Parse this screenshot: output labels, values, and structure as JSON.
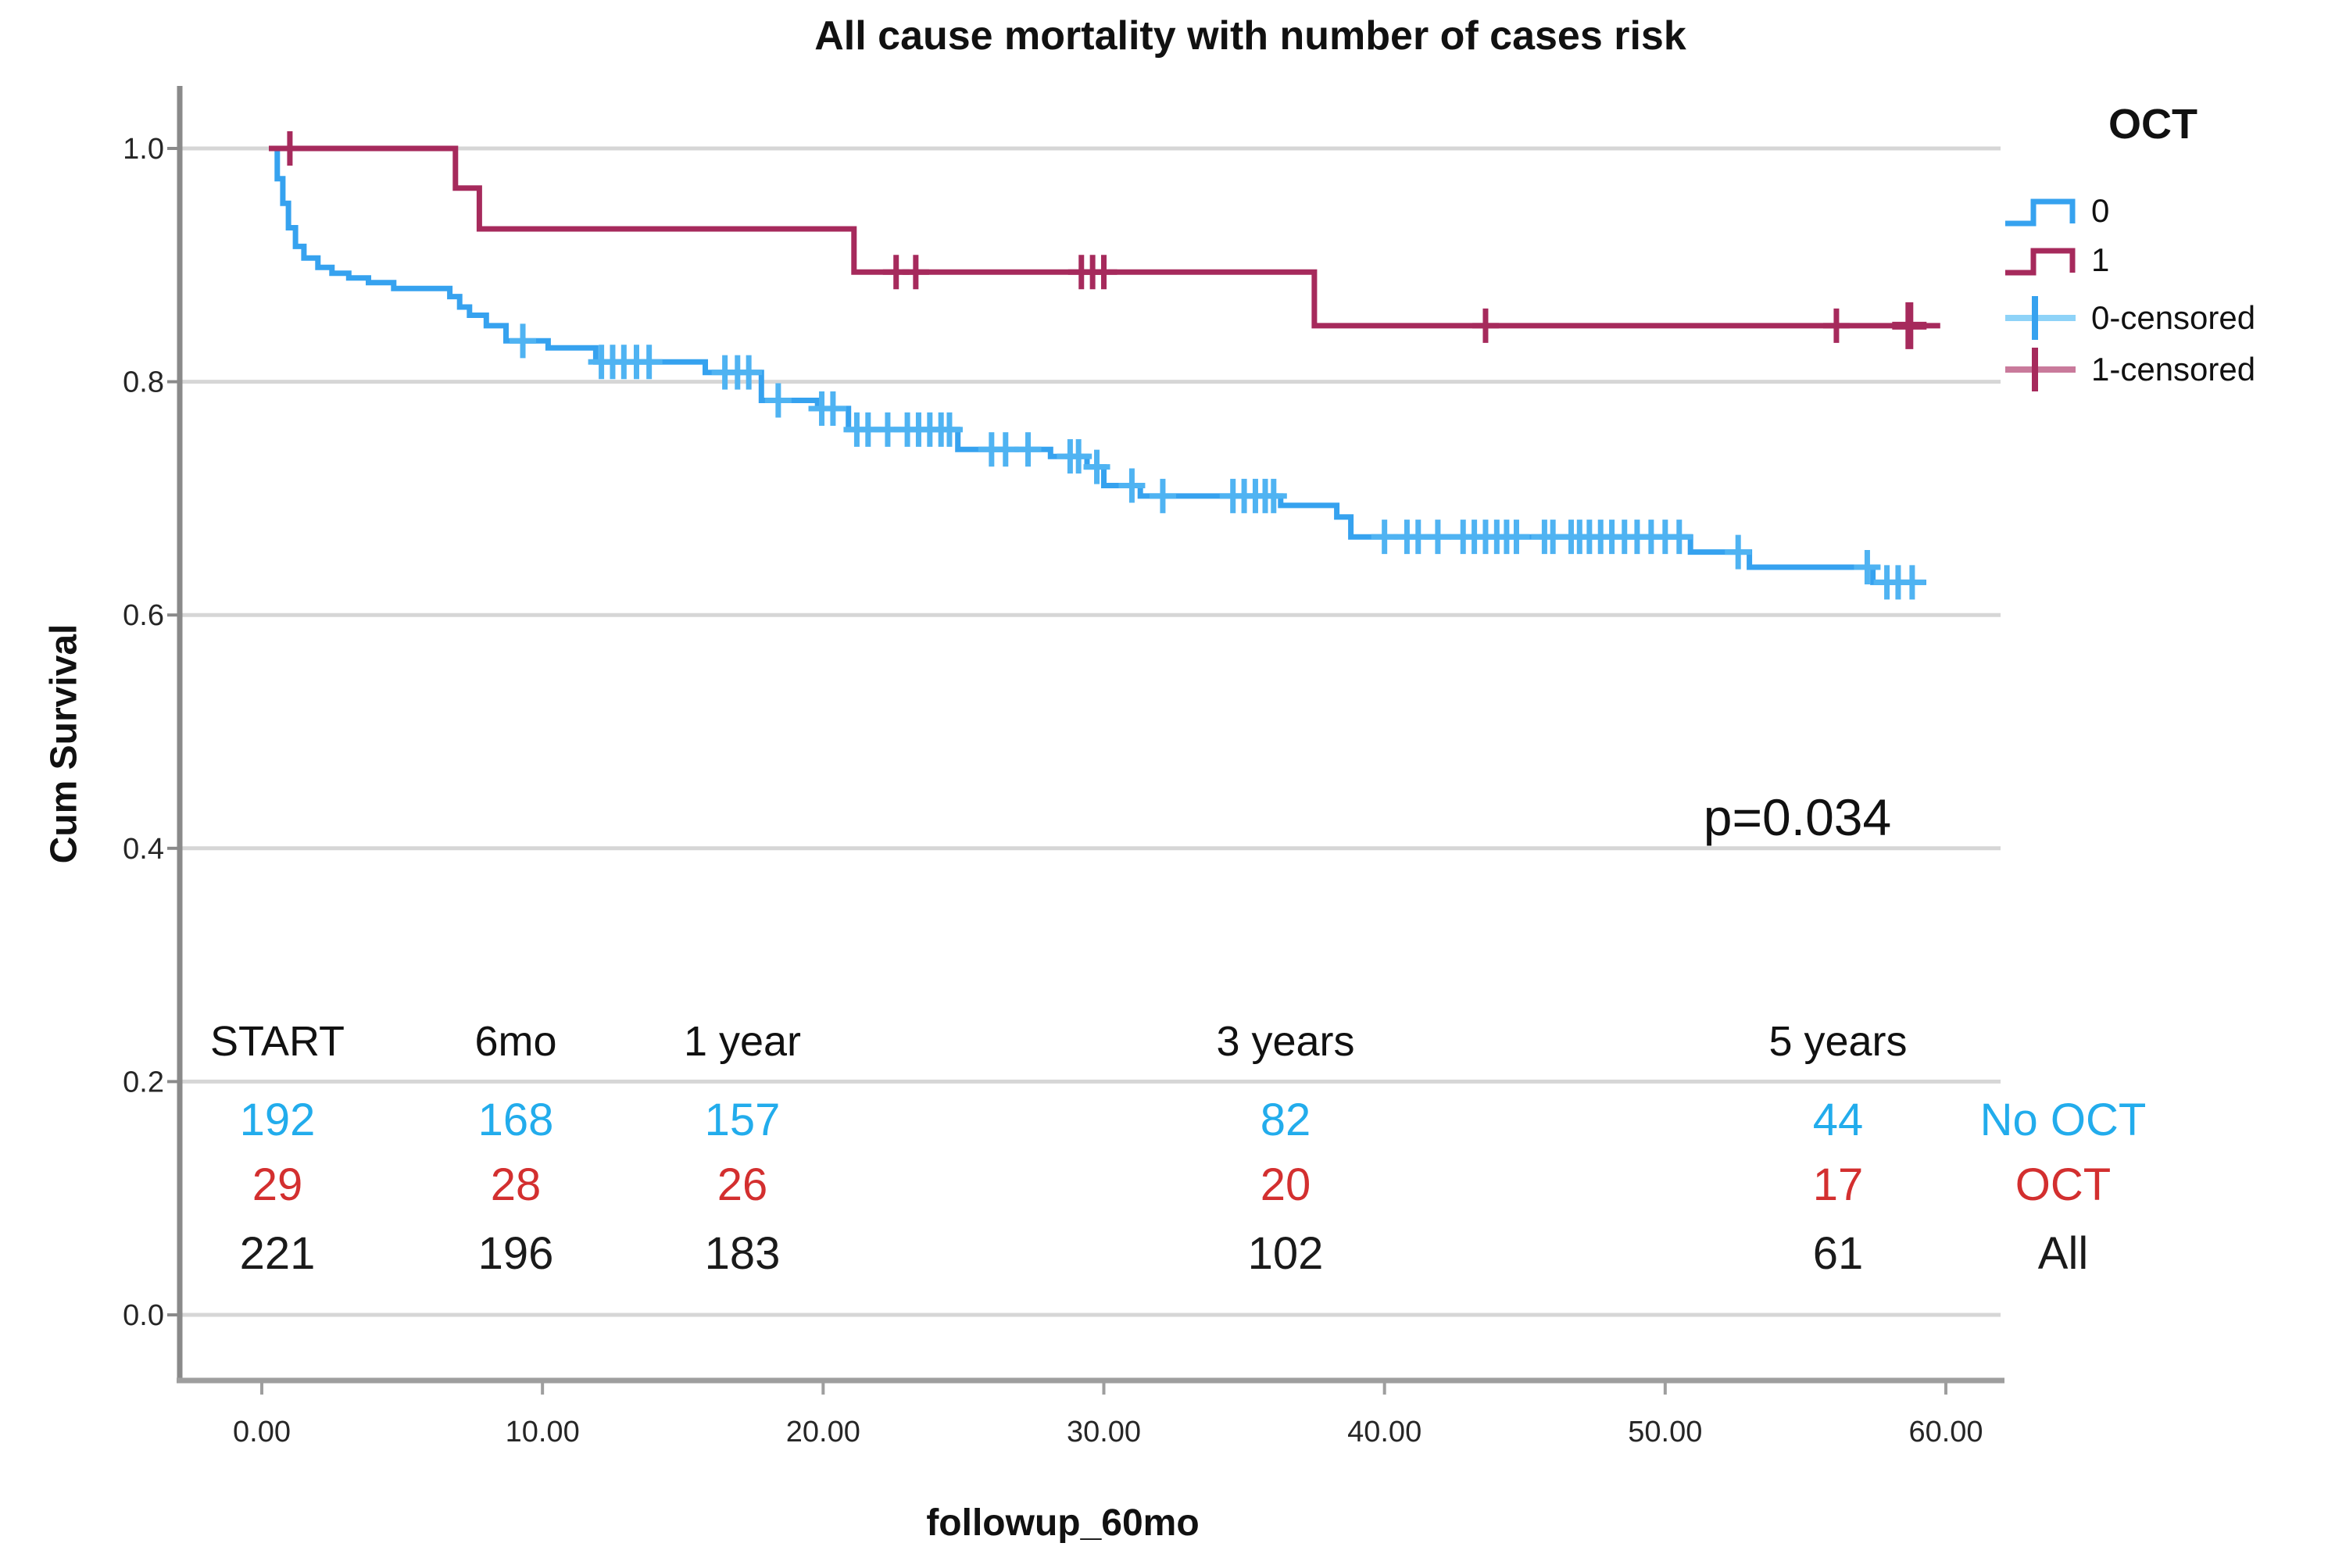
{
  "title": "All cause mortality with number of cases risk",
  "p_value": "p=0.034",
  "axes": {
    "x_label": "followup_60mo",
    "y_label": "Cum Survival",
    "x_tick_labels": [
      "0.00",
      "10.00",
      "20.00",
      "30.00",
      "40.00",
      "50.00",
      "60.00"
    ],
    "x_tick_values": [
      0,
      10,
      20,
      30,
      40,
      50,
      60
    ],
    "y_tick_labels": [
      "0.0",
      "0.2",
      "0.4",
      "0.6",
      "0.8",
      "1.0"
    ],
    "y_tick_values": [
      0.0,
      0.2,
      0.4,
      0.6,
      0.8,
      1.0
    ]
  },
  "legend": {
    "title": "OCT",
    "items": [
      {
        "label": "0",
        "type": "step-line",
        "color": "#36A2EF"
      },
      {
        "label": "1",
        "type": "step-line",
        "color": "#A62A5C"
      },
      {
        "label": "0-censored",
        "type": "plus",
        "color": "#36A2EF",
        "line_color": "#8ED3F8"
      },
      {
        "label": "1-censored",
        "type": "plus",
        "color": "#A62A5C",
        "line_color": "#C97A9B"
      }
    ]
  },
  "risk_table": {
    "headers": [
      "START",
      "6mo",
      "1 year",
      "3 years",
      "5 years"
    ],
    "rows": [
      {
        "label": "No OCT",
        "color": "#22ACEC",
        "values": [
          "192",
          "168",
          "157",
          "82",
          "44"
        ]
      },
      {
        "label": "OCT",
        "color": "#D32F2F",
        "values": [
          "29",
          "28",
          "26",
          "20",
          "17"
        ]
      },
      {
        "label": "All",
        "color": "#1a1a1a",
        "values": [
          "221",
          "196",
          "183",
          "102",
          "61"
        ]
      }
    ]
  },
  "chart_data": {
    "type": "line",
    "subtype": "kaplan-meier-step",
    "title": "All cause mortality with number of cases risk",
    "xlabel": "followup_60mo",
    "ylabel": "Cum Survival",
    "xlim": [
      0,
      60
    ],
    "ylim": [
      0.0,
      1.0
    ],
    "grid": "horizontal",
    "legend_position": "right",
    "annotation": {
      "text": "p=0.034"
    },
    "series": [
      {
        "name": "0",
        "group": "No OCT",
        "color": "#36A2EF",
        "censor_color": "#4FB3F2",
        "start": [
          0.35,
          1.0
        ],
        "end_x": 59.3,
        "steps": [
          [
            0.55,
            0.974
          ],
          [
            0.75,
            0.953
          ],
          [
            0.95,
            0.932
          ],
          [
            1.2,
            0.916
          ],
          [
            1.5,
            0.906
          ],
          [
            2.0,
            0.898
          ],
          [
            2.5,
            0.893
          ],
          [
            3.1,
            0.889
          ],
          [
            3.8,
            0.885
          ],
          [
            4.7,
            0.88
          ],
          [
            6.7,
            0.873
          ],
          [
            7.05,
            0.864
          ],
          [
            7.4,
            0.857
          ],
          [
            8.0,
            0.848
          ],
          [
            8.7,
            0.835
          ],
          [
            10.2,
            0.829
          ],
          [
            11.9,
            0.817
          ],
          [
            15.8,
            0.808
          ],
          [
            17.8,
            0.784
          ],
          [
            19.8,
            0.777
          ],
          [
            20.9,
            0.759
          ],
          [
            24.8,
            0.742
          ],
          [
            28.1,
            0.736
          ],
          [
            29.4,
            0.727
          ],
          [
            30.0,
            0.711
          ],
          [
            31.3,
            0.702
          ],
          [
            36.3,
            0.694
          ],
          [
            38.3,
            0.684
          ],
          [
            38.8,
            0.667
          ],
          [
            50.9,
            0.654
          ],
          [
            53.0,
            0.641
          ],
          [
            57.4,
            0.628
          ]
        ],
        "censored": [
          [
            9.3,
            0.835
          ],
          [
            12.1,
            0.817
          ],
          [
            12.5,
            0.817
          ],
          [
            12.9,
            0.817
          ],
          [
            13.35,
            0.817
          ],
          [
            13.8,
            0.817
          ],
          [
            16.5,
            0.808
          ],
          [
            16.95,
            0.808
          ],
          [
            17.35,
            0.808
          ],
          [
            18.4,
            0.784
          ],
          [
            19.95,
            0.777
          ],
          [
            20.35,
            0.777
          ],
          [
            21.2,
            0.759
          ],
          [
            21.6,
            0.759
          ],
          [
            22.3,
            0.759
          ],
          [
            23.0,
            0.759
          ],
          [
            23.4,
            0.759
          ],
          [
            23.8,
            0.759
          ],
          [
            24.2,
            0.759
          ],
          [
            24.5,
            0.759
          ],
          [
            26.0,
            0.742
          ],
          [
            26.5,
            0.742
          ],
          [
            27.3,
            0.742
          ],
          [
            28.8,
            0.736
          ],
          [
            29.1,
            0.736
          ],
          [
            29.75,
            0.727
          ],
          [
            31.0,
            0.711
          ],
          [
            32.1,
            0.702
          ],
          [
            34.6,
            0.702
          ],
          [
            35.0,
            0.702
          ],
          [
            35.4,
            0.702
          ],
          [
            35.75,
            0.702
          ],
          [
            36.05,
            0.702
          ],
          [
            40.0,
            0.667
          ],
          [
            40.8,
            0.667
          ],
          [
            41.2,
            0.667
          ],
          [
            41.9,
            0.667
          ],
          [
            42.8,
            0.667
          ],
          [
            43.2,
            0.667
          ],
          [
            43.6,
            0.667
          ],
          [
            44.0,
            0.667
          ],
          [
            44.35,
            0.667
          ],
          [
            44.7,
            0.667
          ],
          [
            45.7,
            0.667
          ],
          [
            46.0,
            0.667
          ],
          [
            46.65,
            0.667
          ],
          [
            46.95,
            0.667
          ],
          [
            47.3,
            0.667
          ],
          [
            47.7,
            0.667
          ],
          [
            48.1,
            0.667
          ],
          [
            48.55,
            0.667
          ],
          [
            49.0,
            0.667
          ],
          [
            49.5,
            0.667
          ],
          [
            50.0,
            0.667
          ],
          [
            50.5,
            0.667
          ],
          [
            52.6,
            0.654
          ],
          [
            57.2,
            0.641
          ],
          [
            57.9,
            0.628
          ],
          [
            58.3,
            0.628
          ],
          [
            58.8,
            0.628
          ]
        ]
      },
      {
        "name": "1",
        "group": "OCT",
        "color": "#A62A5C",
        "censor_color": "#A62A5C",
        "start": [
          0.25,
          1.0
        ],
        "end_x": 59.8,
        "steps": [
          [
            6.9,
            0.966
          ],
          [
            7.75,
            0.931
          ],
          [
            21.1,
            0.894
          ],
          [
            37.5,
            0.848
          ]
        ],
        "censored": [
          [
            1.0,
            1.0
          ],
          [
            22.6,
            0.894
          ],
          [
            23.3,
            0.894
          ],
          [
            29.2,
            0.894
          ],
          [
            29.6,
            0.894
          ],
          [
            30.0,
            0.894
          ],
          [
            43.6,
            0.848
          ],
          [
            56.1,
            0.848
          ]
        ],
        "censored_large": [
          [
            58.7,
            0.848
          ]
        ]
      }
    ],
    "risk_table": {
      "headers": [
        "START",
        "6mo",
        "1 year",
        "3 years",
        "5 years"
      ],
      "rows": [
        {
          "label": "No OCT",
          "values": [
            192,
            168,
            157,
            82,
            44
          ]
        },
        {
          "label": "OCT",
          "values": [
            29,
            28,
            26,
            20,
            17
          ]
        },
        {
          "label": "All",
          "values": [
            221,
            196,
            183,
            102,
            61
          ]
        }
      ]
    }
  }
}
